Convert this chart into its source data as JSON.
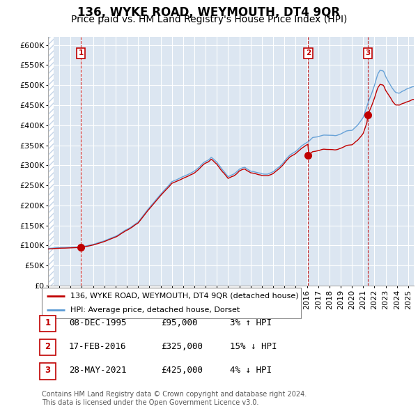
{
  "title": "136, WYKE ROAD, WEYMOUTH, DT4 9QR",
  "subtitle": "Price paid vs. HM Land Registry's House Price Index (HPI)",
  "ylim": [
    0,
    620000
  ],
  "yticks": [
    0,
    50000,
    100000,
    150000,
    200000,
    250000,
    300000,
    350000,
    400000,
    450000,
    500000,
    550000,
    600000
  ],
  "ytick_labels": [
    "£0",
    "£50K",
    "£100K",
    "£150K",
    "£200K",
    "£250K",
    "£300K",
    "£350K",
    "£400K",
    "£450K",
    "£500K",
    "£550K",
    "£600K"
  ],
  "hpi_color": "#5b9bd5",
  "price_color": "#c00000",
  "sale_points": [
    {
      "date": 1995.92,
      "price": 95000,
      "label": "1"
    },
    {
      "date": 2016.12,
      "price": 325000,
      "label": "2"
    },
    {
      "date": 2021.41,
      "price": 425000,
      "label": "3"
    }
  ],
  "legend_line1": "136, WYKE ROAD, WEYMOUTH, DT4 9QR (detached house)",
  "legend_line2": "HPI: Average price, detached house, Dorset",
  "table_rows": [
    {
      "num": "1",
      "date": "08-DEC-1995",
      "price": "£95,000",
      "hpi": "3% ↑ HPI"
    },
    {
      "num": "2",
      "date": "17-FEB-2016",
      "price": "£325,000",
      "hpi": "15% ↓ HPI"
    },
    {
      "num": "3",
      "date": "28-MAY-2021",
      "price": "£425,000",
      "hpi": "4% ↓ HPI"
    }
  ],
  "footer": "Contains HM Land Registry data © Crown copyright and database right 2024.\nThis data is licensed under the Open Government Licence v3.0.",
  "bg_color": "#dce6f1",
  "hatch_color": "#c5d5e8",
  "grid_color": "#ffffff",
  "title_fontsize": 12,
  "subtitle_fontsize": 10,
  "tick_fontsize": 8,
  "xmin": 1993,
  "xmax": 2025.5
}
